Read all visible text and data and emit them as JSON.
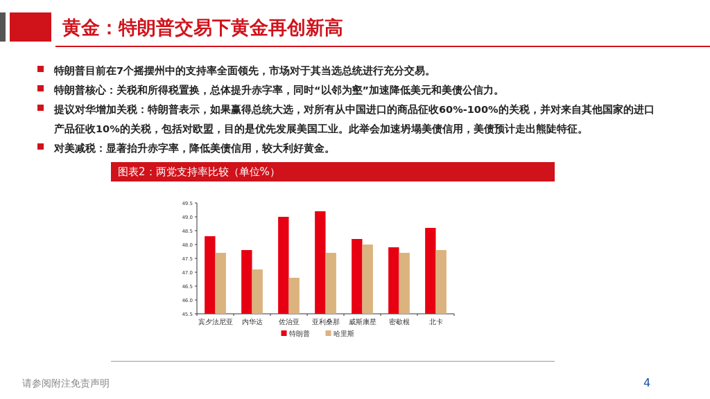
{
  "chart_data": {
    "type": "bar",
    "title": "黄金：特朗普交易下黄金再创新高",
    "subtitle": "图表2：两党支持率比较（单位%）",
    "categories": [
      "宾夕法尼亚",
      "内华达",
      "佐治亚",
      "亚利桑那",
      "威斯康星",
      "密歇根",
      "北卡"
    ],
    "series": [
      {
        "name": "特朗普",
        "color": "#e60012",
        "values": [
          48.3,
          47.8,
          49.0,
          49.2,
          48.2,
          47.9,
          48.6
        ]
      },
      {
        "name": "哈里斯",
        "color": "#dbb37e",
        "values": [
          47.7,
          47.1,
          46.8,
          47.7,
          48.0,
          47.7,
          47.8
        ]
      }
    ],
    "ylim": [
      45.5,
      49.5
    ],
    "yticks": [
      {
        "value": 45.5,
        "label": "45.5"
      },
      {
        "value": 46,
        "label": "46.0"
      },
      {
        "value": 46.5,
        "label": "46.5"
      },
      {
        "value": 47,
        "label": "47.0"
      },
      {
        "value": 47.5,
        "label": "47.5"
      },
      {
        "value": 48,
        "label": "48.0"
      },
      {
        "value": 48.5,
        "label": "48.5"
      },
      {
        "value": 49,
        "label": "49.0"
      },
      {
        "value": 49.5,
        "label": "49.5"
      }
    ],
    "legend": "bottom",
    "annotations": [
      "特朗普目前在7个摇摆州中的支持率全面领先，市场对于其当选总统进行充分交易。",
      "特朗普核心：关税和所得税置换，总体提升赤字率，同时“以邻为壑”加速降低美元和美债公信力。",
      "提议对华增加关税：特朗普表示，如果赢得总统大选，对所有从中国进口的商品征收60%-100%的关税，并对来自其他国家的进口产品征收10%的关税，包括对欧盟，目的是优先发展美国工业。此举会加速坍塌美债信用，美债预计走出熊陡特征。",
      "对美减税：显著抬升赤字率，降低美债信用，较大利好黄金。",
      "请参阅附注免责声明",
      "4"
    ]
  }
}
